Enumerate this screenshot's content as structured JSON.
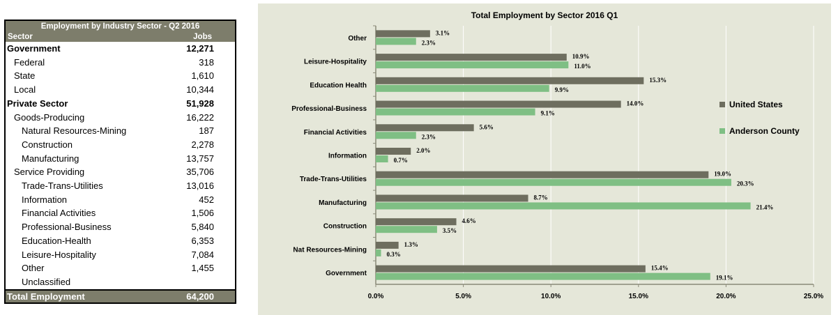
{
  "table": {
    "title": "Employment by Industry Sector - Q2 2016",
    "header": {
      "label": "Sector",
      "value": "Jobs"
    },
    "rows": [
      {
        "label": "Government",
        "value": "12,271",
        "level": 0
      },
      {
        "label": "Federal",
        "value": "318",
        "level": 1
      },
      {
        "label": "State",
        "value": "1,610",
        "level": 1
      },
      {
        "label": "Local",
        "value": "10,344",
        "level": 1
      },
      {
        "label": "Private Sector",
        "value": "51,928",
        "level": 0
      },
      {
        "label": "Goods-Producing",
        "value": "16,222",
        "level": 1
      },
      {
        "label": "Natural Resources-Mining",
        "value": "187",
        "level": 2
      },
      {
        "label": "Construction",
        "value": "2,278",
        "level": 2
      },
      {
        "label": "Manufacturing",
        "value": "13,757",
        "level": 2
      },
      {
        "label": "Service Providing",
        "value": "35,706",
        "level": 1
      },
      {
        "label": "Trade-Trans-Utilities",
        "value": "13,016",
        "level": 2
      },
      {
        "label": "Information",
        "value": "452",
        "level": 2
      },
      {
        "label": "Financial Activities",
        "value": "1,506",
        "level": 2
      },
      {
        "label": "Professional-Business",
        "value": "5,840",
        "level": 2
      },
      {
        "label": "Education-Health",
        "value": "6,353",
        "level": 2
      },
      {
        "label": "Leisure-Hospitality",
        "value": "7,084",
        "level": 2
      },
      {
        "label": "Other",
        "value": "1,455",
        "level": 2
      },
      {
        "label": "Unclassified",
        "value": "",
        "level": 2
      }
    ],
    "total": {
      "label": "Total Employment",
      "value": "64,200"
    }
  },
  "chart_data": {
    "type": "bar",
    "orientation": "horizontal",
    "title": "Total Employment by Sector  2016 Q1",
    "categories": [
      "Other",
      "Leisure-Hospitality",
      "Education Health",
      "Professional-Business",
      "Financial Activities",
      "Information",
      "Trade-Trans-Utilities",
      "Manufacturing",
      "Construction",
      "Nat Resources-Mining",
      "Government"
    ],
    "series": [
      {
        "name": "United States",
        "color": "#6e6e5f",
        "values": [
          3.1,
          10.9,
          15.3,
          14.0,
          5.6,
          2.0,
          19.0,
          8.7,
          4.6,
          1.3,
          15.4
        ],
        "labels": [
          "3.1%",
          "10.9%",
          "15.3%",
          "14.0%",
          "5.6%",
          "2.0%",
          "19.0%",
          "8.7%",
          "4.6%",
          "1.3%",
          "15.4%"
        ]
      },
      {
        "name": "Anderson County",
        "color": "#7fbf84",
        "values": [
          2.3,
          11.0,
          9.9,
          9.1,
          2.3,
          0.7,
          20.3,
          21.4,
          3.5,
          0.3,
          19.1
        ],
        "labels": [
          "2.3%",
          "11.0%",
          "9.9%",
          "9.1%",
          "2.3%",
          "0.7%",
          "20.3%",
          "21.4%",
          "3.5%",
          "0.3%",
          "19.1%"
        ]
      }
    ],
    "xlim": [
      0,
      25
    ],
    "xticks": [
      0,
      5,
      10,
      15,
      20,
      25
    ],
    "xtick_labels": [
      "0.0%",
      "5.0%",
      "10.0%",
      "15.0%",
      "20.0%",
      "25.0%"
    ],
    "grid": true,
    "legend_position": "right",
    "background": "#e5e7d9"
  }
}
